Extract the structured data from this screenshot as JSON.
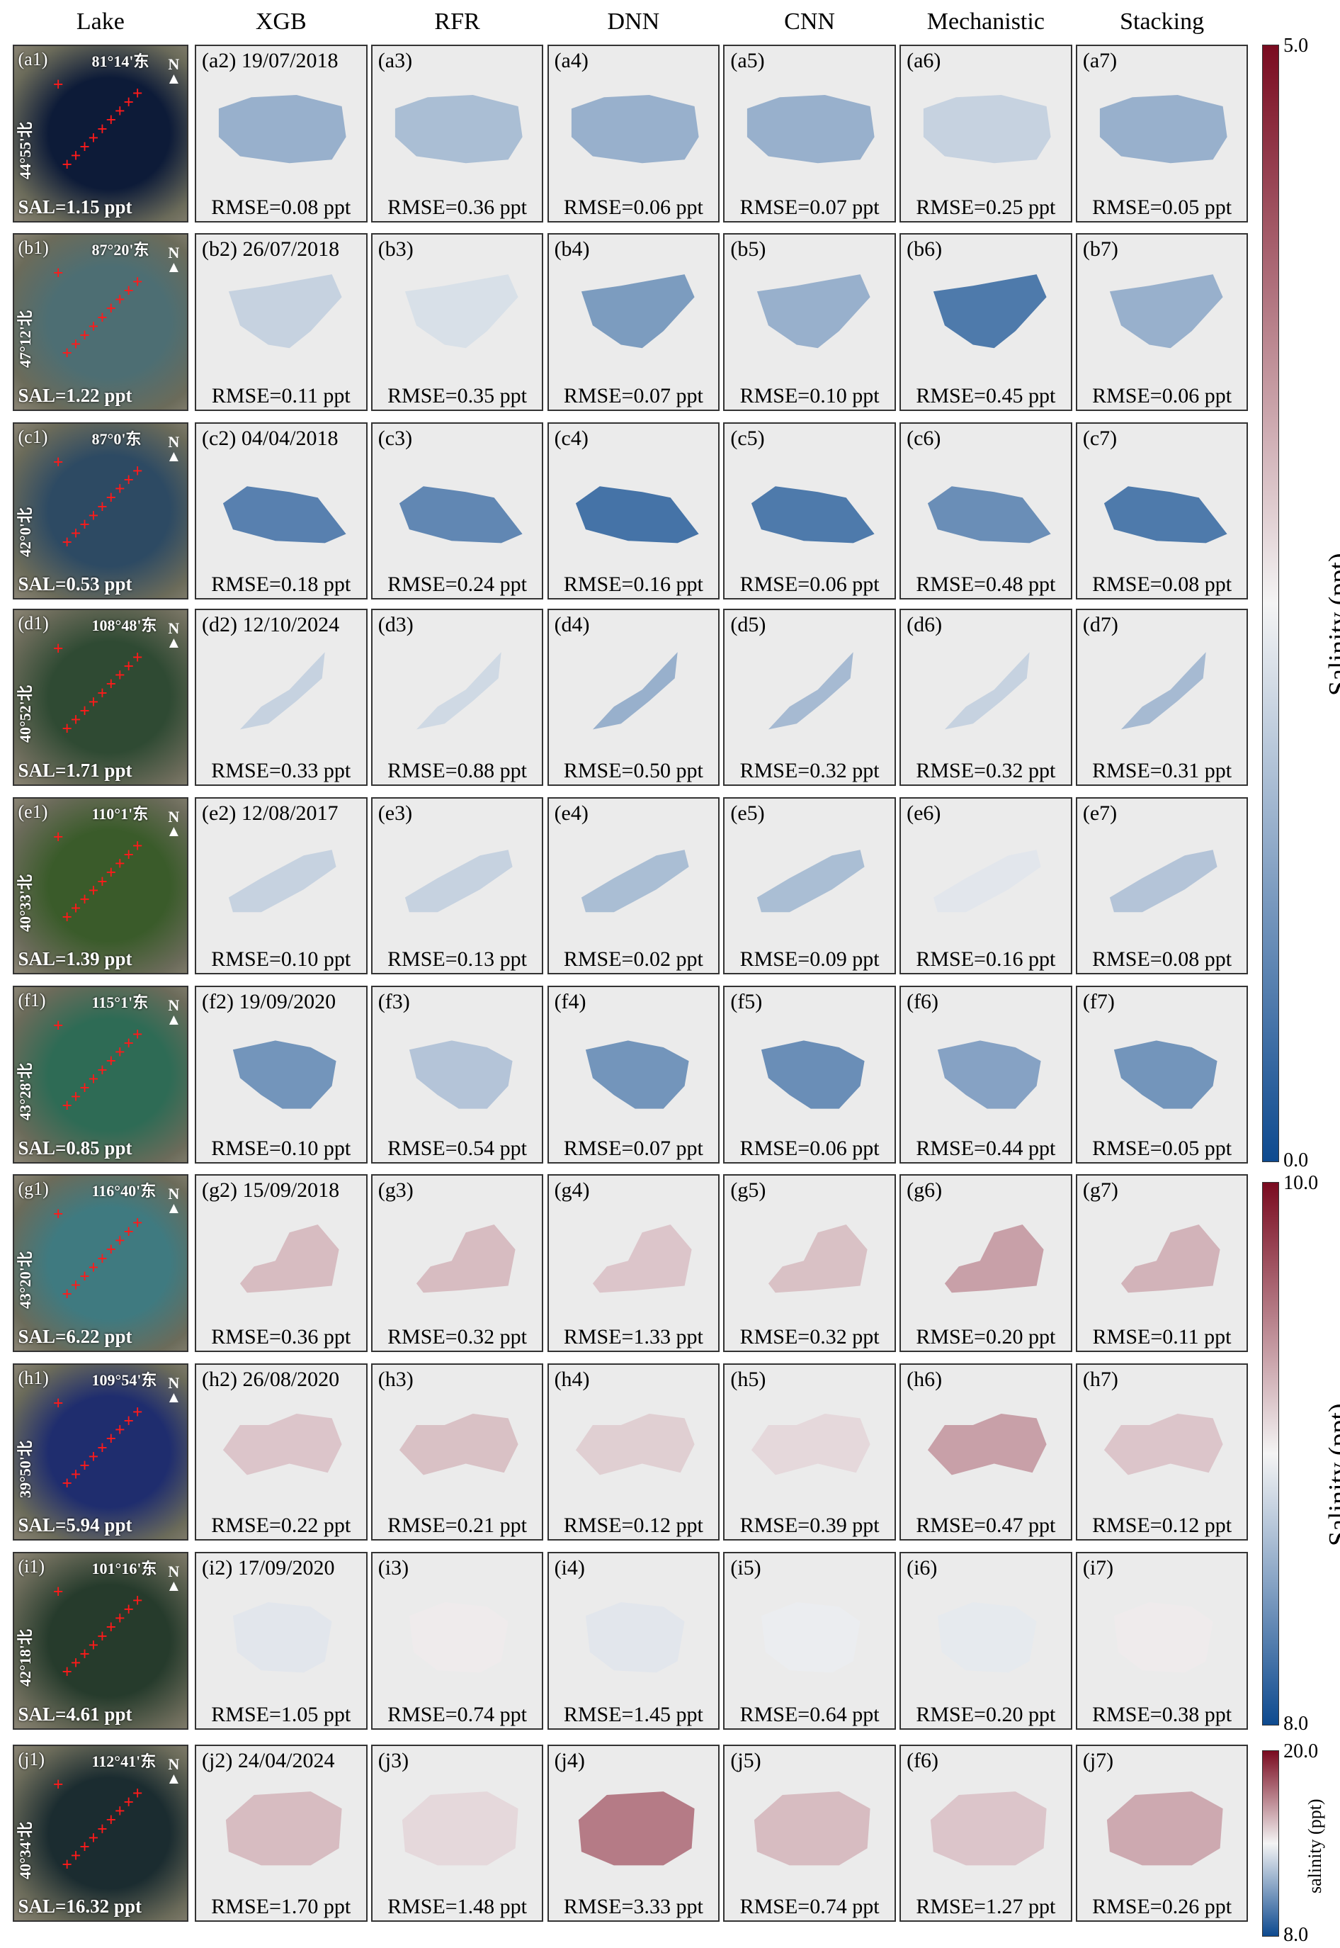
{
  "columns": [
    "Lake",
    "XGB",
    "RFR",
    "DNN",
    "CNN",
    "Mechanistic",
    "Stacking"
  ],
  "colors": {
    "map_low": "#0e4a8f",
    "map_mid": "#f4f4f4",
    "map_high": "#7a0b20",
    "panel_bg": "#ebebeb"
  },
  "rows": [
    {
      "sat_label": "(a1)",
      "lon": "81°14'东",
      "lat": "44°55'北",
      "sal": "SAL=1.15 ppt",
      "sat_color": "#0d1b38",
      "panels": [
        {
          "label": "(a2) 19/07/2018",
          "rmse": "RMSE=0.08 ppt",
          "tone": 0.3
        },
        {
          "label": "(a3)",
          "rmse": "RMSE=0.36 ppt",
          "tone": 0.34
        },
        {
          "label": "(a4)",
          "rmse": "RMSE=0.06 ppt",
          "tone": 0.3
        },
        {
          "label": "(a5)",
          "rmse": "RMSE=0.07 ppt",
          "tone": 0.3
        },
        {
          "label": "(a6)",
          "rmse": "RMSE=0.25 ppt",
          "tone": 0.4
        },
        {
          "label": "(a7)",
          "rmse": "RMSE=0.05 ppt",
          "tone": 0.3
        }
      ]
    },
    {
      "sat_label": "(b1)",
      "lon": "87°20'东",
      "lat": "47°12'北",
      "sal": "SAL=1.22 ppt",
      "sat_color": "#4d6e73",
      "panels": [
        {
          "label": "(b2) 26/07/2018",
          "rmse": "RMSE=0.11 ppt",
          "tone": 0.4
        },
        {
          "label": "(b3)",
          "rmse": "RMSE=0.35 ppt",
          "tone": 0.44
        },
        {
          "label": "(b4)",
          "rmse": "RMSE=0.07 ppt",
          "tone": 0.24
        },
        {
          "label": "(b5)",
          "rmse": "RMSE=0.10 ppt",
          "tone": 0.3
        },
        {
          "label": "(b6)",
          "rmse": "RMSE=0.45 ppt",
          "tone": 0.14
        },
        {
          "label": "(b7)",
          "rmse": "RMSE=0.06 ppt",
          "tone": 0.3
        }
      ]
    },
    {
      "sat_label": "(c1)",
      "lon": "87°0'东",
      "lat": "42°0'北",
      "sal": "SAL=0.53 ppt",
      "sat_color": "#2d4a63",
      "panels": [
        {
          "label": "(c2) 04/04/2018",
          "rmse": "RMSE=0.18 ppt",
          "tone": 0.16
        },
        {
          "label": "(c3)",
          "rmse": "RMSE=0.24 ppt",
          "tone": 0.18
        },
        {
          "label": "(c4)",
          "rmse": "RMSE=0.16 ppt",
          "tone": 0.12
        },
        {
          "label": "(c5)",
          "rmse": "RMSE=0.06 ppt",
          "tone": 0.14
        },
        {
          "label": "(c6)",
          "rmse": "RMSE=0.48 ppt",
          "tone": 0.2
        },
        {
          "label": "(c7)",
          "rmse": "RMSE=0.08 ppt",
          "tone": 0.14
        }
      ]
    },
    {
      "sat_label": "(d1)",
      "lon": "108°48'东",
      "lat": "40°52'北",
      "sal": "SAL=1.71 ppt",
      "sat_color": "#2f4a33",
      "panels": [
        {
          "label": "(d2) 12/10/2024",
          "rmse": "RMSE=0.33 ppt",
          "tone": 0.4
        },
        {
          "label": "(d3)",
          "rmse": "RMSE=0.88 ppt",
          "tone": 0.42
        },
        {
          "label": "(d4)",
          "rmse": "RMSE=0.50 ppt",
          "tone": 0.3
        },
        {
          "label": "(d5)",
          "rmse": "RMSE=0.32 ppt",
          "tone": 0.33
        },
        {
          "label": "(d6)",
          "rmse": "RMSE=0.32 ppt",
          "tone": 0.4
        },
        {
          "label": "(d7)",
          "rmse": "RMSE=0.31 ppt",
          "tone": 0.33
        }
      ]
    },
    {
      "sat_label": "(e1)",
      "lon": "110°1'东",
      "lat": "40°33'北",
      "sal": "SAL=1.39 ppt",
      "sat_color": "#3a5b2a",
      "panels": [
        {
          "label": "(e2) 12/08/2017",
          "rmse": "RMSE=0.10 ppt",
          "tone": 0.4
        },
        {
          "label": "(e3)",
          "rmse": "RMSE=0.13 ppt",
          "tone": 0.4
        },
        {
          "label": "(e4)",
          "rmse": "RMSE=0.02 ppt",
          "tone": 0.34
        },
        {
          "label": "(e5)",
          "rmse": "RMSE=0.09 ppt",
          "tone": 0.34
        },
        {
          "label": "(e6)",
          "rmse": "RMSE=0.16 ppt",
          "tone": 0.46
        },
        {
          "label": "(e7)",
          "rmse": "RMSE=0.08 ppt",
          "tone": 0.36
        }
      ]
    },
    {
      "sat_label": "(f1)",
      "lon": "115°1'东",
      "lat": "43°28'北",
      "sal": "SAL=0.85 ppt",
      "sat_color": "#2e6b55",
      "panels": [
        {
          "label": "(f2) 19/09/2020",
          "rmse": "RMSE=0.10 ppt",
          "tone": 0.22
        },
        {
          "label": "(f3)",
          "rmse": "RMSE=0.54 ppt",
          "tone": 0.36
        },
        {
          "label": "(f4)",
          "rmse": "RMSE=0.07 ppt",
          "tone": 0.22
        },
        {
          "label": "(f5)",
          "rmse": "RMSE=0.06 ppt",
          "tone": 0.2
        },
        {
          "label": "(f6)",
          "rmse": "RMSE=0.44 ppt",
          "tone": 0.26
        },
        {
          "label": "(f7)",
          "rmse": "RMSE=0.05 ppt",
          "tone": 0.22
        }
      ]
    },
    {
      "sat_label": "(g1)",
      "lon": "116°40'东",
      "lat": "43°20'北",
      "sal": "SAL=6.22 ppt",
      "sat_color": "#3f7a80",
      "panels": [
        {
          "label": "(g2) 15/09/2018",
          "rmse": "RMSE=0.36 ppt",
          "tone": 0.62
        },
        {
          "label": "(g3)",
          "rmse": "RMSE=0.32 ppt",
          "tone": 0.62
        },
        {
          "label": "(g4)",
          "rmse": "RMSE=1.33 ppt",
          "tone": 0.6
        },
        {
          "label": "(g5)",
          "rmse": "RMSE=0.32 ppt",
          "tone": 0.61
        },
        {
          "label": "(g6)",
          "rmse": "RMSE=0.20 ppt",
          "tone": 0.68
        },
        {
          "label": "(g7)",
          "rmse": "RMSE=0.11 ppt",
          "tone": 0.64
        }
      ]
    },
    {
      "sat_label": "(h1)",
      "lon": "109°54'东",
      "lat": "39°50'北",
      "sal": "SAL=5.94 ppt",
      "sat_color": "#1f2d6e",
      "panels": [
        {
          "label": "(h2) 26/08/2020",
          "rmse": "RMSE=0.22 ppt",
          "tone": 0.6
        },
        {
          "label": "(h3)",
          "rmse": "RMSE=0.21 ppt",
          "tone": 0.61
        },
        {
          "label": "(h4)",
          "rmse": "RMSE=0.12 ppt",
          "tone": 0.58
        },
        {
          "label": "(h5)",
          "rmse": "RMSE=0.39 ppt",
          "tone": 0.56
        },
        {
          "label": "(h6)",
          "rmse": "RMSE=0.47 ppt",
          "tone": 0.68
        },
        {
          "label": "(h7)",
          "rmse": "RMSE=0.12 ppt",
          "tone": 0.6
        }
      ]
    },
    {
      "sat_label": "(i1)",
      "lon": "101°16'东",
      "lat": "42°18'北",
      "sal": "SAL=4.61 ppt",
      "sat_color": "#263b2c",
      "panels": [
        {
          "label": "(i2) 17/09/2020",
          "rmse": "RMSE=1.05 ppt",
          "tone": 0.46
        },
        {
          "label": "(i3)",
          "rmse": "RMSE=0.74 ppt",
          "tone": 0.52
        },
        {
          "label": "(i4)",
          "rmse": "RMSE=1.45 ppt",
          "tone": 0.46
        },
        {
          "label": "(i5)",
          "rmse": "RMSE=0.64 ppt",
          "tone": 0.48
        },
        {
          "label": "(i6)",
          "rmse": "RMSE=0.20 ppt",
          "tone": 0.47
        },
        {
          "label": "(i7)",
          "rmse": "RMSE=0.38 ppt",
          "tone": 0.52
        }
      ]
    },
    {
      "sat_label": "(j1)",
      "lon": "112°41'东",
      "lat": "40°34'北",
      "sal": "SAL=16.32 ppt",
      "sat_color": "#1b2c30",
      "panels": [
        {
          "label": "(j2) 24/04/2024",
          "rmse": "RMSE=1.70 ppt",
          "tone": 0.62
        },
        {
          "label": "(j3)",
          "rmse": "RMSE=1.48 ppt",
          "tone": 0.56
        },
        {
          "label": "(j4)",
          "rmse": "RMSE=3.33 ppt",
          "tone": 0.76
        },
        {
          "label": "(j5)",
          "rmse": "RMSE=0.74 ppt",
          "tone": 0.62
        },
        {
          "label": "(f6)",
          "rmse": "RMSE=1.27 ppt",
          "tone": 0.6
        },
        {
          "label": "(j7)",
          "rmse": "RMSE=0.26 ppt",
          "tone": 0.66
        }
      ]
    }
  ],
  "colorbars": [
    {
      "max": "5.0",
      "min": "0.0",
      "title": "Salinity (ppt)"
    },
    {
      "max": "10.0",
      "min": "8.0",
      "title": "Salinity (ppt)"
    },
    {
      "max": "20.0",
      "min": "8.0",
      "title": "salinity (ppt)"
    }
  ]
}
